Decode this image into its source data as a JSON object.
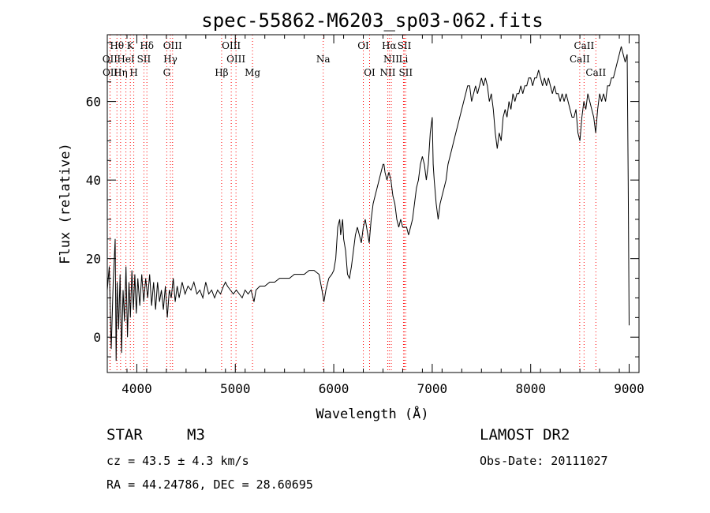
{
  "chart_data": {
    "type": "line",
    "title": "spec-55862-M6203_sp03-062.fits",
    "xlabel": "Wavelength (Å)",
    "ylabel": "Flux (relative)",
    "xlim": [
      3700,
      9100
    ],
    "ylim": [
      -9,
      77
    ],
    "xticks": [
      4000,
      5000,
      6000,
      7000,
      8000,
      9000
    ],
    "yticks": [
      0,
      20,
      40,
      60
    ],
    "grid": false,
    "line_color": "#000000",
    "marker_color": "#ff0000",
    "series": [
      {
        "points": [
          [
            3700,
            12
          ],
          [
            3720,
            18
          ],
          [
            3740,
            -3
          ],
          [
            3760,
            14
          ],
          [
            3780,
            25
          ],
          [
            3790,
            -6
          ],
          [
            3800,
            14
          ],
          [
            3815,
            2
          ],
          [
            3830,
            16
          ],
          [
            3845,
            -4
          ],
          [
            3860,
            12
          ],
          [
            3875,
            4
          ],
          [
            3890,
            18
          ],
          [
            3905,
            0
          ],
          [
            3920,
            14
          ],
          [
            3935,
            5
          ],
          [
            3950,
            17
          ],
          [
            3965,
            7
          ],
          [
            3980,
            16
          ],
          [
            3995,
            6
          ],
          [
            4010,
            15
          ],
          [
            4030,
            8
          ],
          [
            4050,
            16
          ],
          [
            4070,
            9
          ],
          [
            4090,
            15
          ],
          [
            4110,
            10
          ],
          [
            4130,
            16
          ],
          [
            4150,
            8
          ],
          [
            4170,
            14
          ],
          [
            4190,
            7
          ],
          [
            4210,
            14
          ],
          [
            4230,
            9
          ],
          [
            4250,
            12
          ],
          [
            4270,
            7
          ],
          [
            4290,
            13
          ],
          [
            4310,
            5
          ],
          [
            4330,
            12
          ],
          [
            4350,
            10
          ],
          [
            4370,
            15
          ],
          [
            4390,
            9
          ],
          [
            4410,
            13
          ],
          [
            4430,
            10
          ],
          [
            4460,
            14
          ],
          [
            4490,
            11
          ],
          [
            4520,
            13
          ],
          [
            4550,
            12
          ],
          [
            4580,
            14
          ],
          [
            4610,
            11
          ],
          [
            4640,
            12
          ],
          [
            4670,
            10
          ],
          [
            4700,
            14
          ],
          [
            4730,
            11
          ],
          [
            4760,
            12
          ],
          [
            4790,
            10
          ],
          [
            4820,
            12
          ],
          [
            4850,
            11
          ],
          [
            4880,
            13
          ],
          [
            4900,
            14
          ],
          [
            4920,
            13
          ],
          [
            4950,
            12
          ],
          [
            4980,
            11
          ],
          [
            5010,
            12
          ],
          [
            5040,
            11
          ],
          [
            5070,
            10
          ],
          [
            5100,
            12
          ],
          [
            5130,
            11
          ],
          [
            5160,
            12
          ],
          [
            5190,
            9
          ],
          [
            5210,
            12
          ],
          [
            5250,
            13
          ],
          [
            5300,
            13
          ],
          [
            5350,
            14
          ],
          [
            5400,
            14
          ],
          [
            5450,
            15
          ],
          [
            5500,
            15
          ],
          [
            5550,
            15
          ],
          [
            5600,
            16
          ],
          [
            5650,
            16
          ],
          [
            5700,
            16
          ],
          [
            5750,
            17
          ],
          [
            5800,
            17
          ],
          [
            5850,
            16
          ],
          [
            5880,
            12
          ],
          [
            5900,
            9
          ],
          [
            5920,
            12
          ],
          [
            5950,
            15
          ],
          [
            5980,
            16
          ],
          [
            6000,
            17
          ],
          [
            6020,
            20
          ],
          [
            6040,
            28
          ],
          [
            6060,
            30
          ],
          [
            6070,
            26
          ],
          [
            6080,
            28
          ],
          [
            6090,
            30
          ],
          [
            6100,
            25
          ],
          [
            6120,
            22
          ],
          [
            6140,
            16
          ],
          [
            6160,
            15
          ],
          [
            6180,
            18
          ],
          [
            6200,
            22
          ],
          [
            6220,
            26
          ],
          [
            6240,
            28
          ],
          [
            6260,
            26
          ],
          [
            6280,
            24
          ],
          [
            6300,
            28
          ],
          [
            6320,
            30
          ],
          [
            6340,
            27
          ],
          [
            6360,
            24
          ],
          [
            6380,
            30
          ],
          [
            6400,
            34
          ],
          [
            6420,
            36
          ],
          [
            6440,
            38
          ],
          [
            6460,
            40
          ],
          [
            6480,
            42
          ],
          [
            6500,
            44
          ],
          [
            6510,
            44
          ],
          [
            6520,
            42
          ],
          [
            6540,
            40
          ],
          [
            6560,
            42
          ],
          [
            6580,
            40
          ],
          [
            6600,
            36
          ],
          [
            6620,
            34
          ],
          [
            6640,
            30
          ],
          [
            6660,
            28
          ],
          [
            6680,
            30
          ],
          [
            6700,
            28
          ],
          [
            6720,
            28
          ],
          [
            6740,
            28
          ],
          [
            6760,
            26
          ],
          [
            6780,
            28
          ],
          [
            6800,
            30
          ],
          [
            6820,
            34
          ],
          [
            6840,
            38
          ],
          [
            6860,
            40
          ],
          [
            6880,
            44
          ],
          [
            6900,
            46
          ],
          [
            6920,
            44
          ],
          [
            6940,
            40
          ],
          [
            6960,
            44
          ],
          [
            6980,
            52
          ],
          [
            7000,
            56
          ],
          [
            7010,
            44
          ],
          [
            7020,
            40
          ],
          [
            7040,
            34
          ],
          [
            7060,
            30
          ],
          [
            7080,
            34
          ],
          [
            7100,
            36
          ],
          [
            7120,
            38
          ],
          [
            7140,
            40
          ],
          [
            7160,
            44
          ],
          [
            7180,
            46
          ],
          [
            7200,
            48
          ],
          [
            7220,
            50
          ],
          [
            7240,
            52
          ],
          [
            7260,
            54
          ],
          [
            7280,
            56
          ],
          [
            7300,
            58
          ],
          [
            7320,
            60
          ],
          [
            7340,
            62
          ],
          [
            7360,
            64
          ],
          [
            7380,
            64
          ],
          [
            7400,
            60
          ],
          [
            7420,
            62
          ],
          [
            7440,
            64
          ],
          [
            7460,
            62
          ],
          [
            7480,
            64
          ],
          [
            7500,
            66
          ],
          [
            7520,
            64
          ],
          [
            7540,
            66
          ],
          [
            7560,
            64
          ],
          [
            7580,
            60
          ],
          [
            7600,
            62
          ],
          [
            7620,
            58
          ],
          [
            7640,
            52
          ],
          [
            7660,
            48
          ],
          [
            7680,
            52
          ],
          [
            7700,
            50
          ],
          [
            7720,
            56
          ],
          [
            7740,
            58
          ],
          [
            7760,
            56
          ],
          [
            7780,
            60
          ],
          [
            7800,
            58
          ],
          [
            7820,
            62
          ],
          [
            7840,
            60
          ],
          [
            7860,
            62
          ],
          [
            7880,
            62
          ],
          [
            7900,
            64
          ],
          [
            7920,
            62
          ],
          [
            7940,
            64
          ],
          [
            7960,
            64
          ],
          [
            7980,
            66
          ],
          [
            8000,
            66
          ],
          [
            8020,
            64
          ],
          [
            8040,
            66
          ],
          [
            8060,
            66
          ],
          [
            8080,
            68
          ],
          [
            8100,
            66
          ],
          [
            8120,
            64
          ],
          [
            8140,
            66
          ],
          [
            8160,
            64
          ],
          [
            8180,
            66
          ],
          [
            8200,
            64
          ],
          [
            8220,
            62
          ],
          [
            8240,
            64
          ],
          [
            8260,
            62
          ],
          [
            8280,
            62
          ],
          [
            8300,
            60
          ],
          [
            8320,
            62
          ],
          [
            8340,
            60
          ],
          [
            8360,
            62
          ],
          [
            8380,
            60
          ],
          [
            8400,
            58
          ],
          [
            8420,
            56
          ],
          [
            8440,
            56
          ],
          [
            8460,
            58
          ],
          [
            8480,
            52
          ],
          [
            8500,
            50
          ],
          [
            8520,
            56
          ],
          [
            8540,
            60
          ],
          [
            8560,
            58
          ],
          [
            8580,
            62
          ],
          [
            8600,
            60
          ],
          [
            8620,
            58
          ],
          [
            8640,
            56
          ],
          [
            8660,
            52
          ],
          [
            8680,
            58
          ],
          [
            8700,
            62
          ],
          [
            8720,
            60
          ],
          [
            8740,
            62
          ],
          [
            8760,
            60
          ],
          [
            8780,
            64
          ],
          [
            8800,
            64
          ],
          [
            8820,
            66
          ],
          [
            8840,
            66
          ],
          [
            8860,
            68
          ],
          [
            8880,
            70
          ],
          [
            8900,
            72
          ],
          [
            8920,
            74
          ],
          [
            8940,
            72
          ],
          [
            8960,
            70
          ],
          [
            8980,
            72
          ],
          [
            8990,
            40
          ],
          [
            9000,
            3
          ]
        ]
      }
    ],
    "lines": [
      {
        "label": "Hθ",
        "x": 3798,
        "row": 1
      },
      {
        "label": "K",
        "x": 3934,
        "row": 1
      },
      {
        "label": "Hδ",
        "x": 4102,
        "row": 1
      },
      {
        "label": "OIII",
        "x": 4363,
        "row": 1
      },
      {
        "label": "OIII",
        "x": 4959,
        "row": 1
      },
      {
        "label": "OI",
        "x": 6300,
        "row": 1
      },
      {
        "label": "Hα",
        "x": 6563,
        "row": 1
      },
      {
        "label": "SII",
        "x": 6717,
        "row": 1
      },
      {
        "label": "CaII",
        "x": 8542,
        "row": 1
      },
      {
        "label": "OII",
        "x": 3727,
        "row": 2
      },
      {
        "label": "HeI",
        "x": 3889,
        "row": 2
      },
      {
        "label": "SII",
        "x": 4072,
        "row": 2
      },
      {
        "label": "Hγ",
        "x": 4341,
        "row": 2
      },
      {
        "label": "OIII",
        "x": 5007,
        "row": 2
      },
      {
        "label": "Na",
        "x": 5893,
        "row": 2
      },
      {
        "label": "NII",
        "x": 6584,
        "row": 2
      },
      {
        "label": "Li",
        "x": 6708,
        "row": 2
      },
      {
        "label": "CaII",
        "x": 8498,
        "row": 2
      },
      {
        "label": "OII",
        "x": 3729,
        "row": 3
      },
      {
        "label": "Hη",
        "x": 3835,
        "row": 3
      },
      {
        "label": "H",
        "x": 3969,
        "row": 3
      },
      {
        "label": "G",
        "x": 4304,
        "row": 3
      },
      {
        "label": "Hβ",
        "x": 4861,
        "row": 3
      },
      {
        "label": "Mg",
        "x": 5175,
        "row": 3
      },
      {
        "label": "OI",
        "x": 6364,
        "row": 3
      },
      {
        "label": "NII",
        "x": 6548,
        "row": 3
      },
      {
        "label": "SII",
        "x": 6731,
        "row": 3
      },
      {
        "label": "CaII",
        "x": 8662,
        "row": 3
      }
    ]
  },
  "info": {
    "object_type": "STAR",
    "subclass": "M3",
    "survey": "LAMOST DR2",
    "redshift": "cz = 43.5 ± 4.3 km/s",
    "obs_date": "Obs-Date: 20111027",
    "coords": "RA =  44.24786, DEC =  28.60695"
  }
}
